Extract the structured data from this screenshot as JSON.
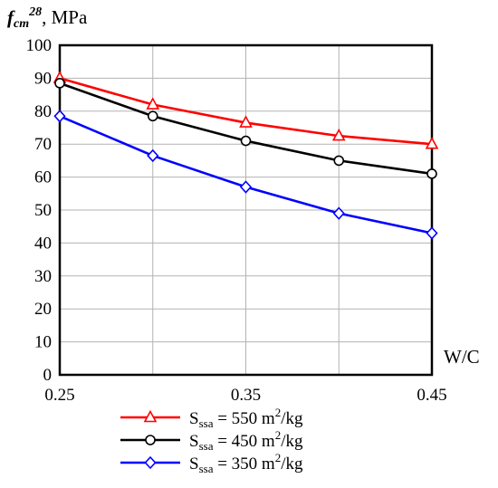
{
  "chart_data": {
    "type": "line",
    "y_title": {
      "main": "f",
      "sub": "cm",
      "sup": "28",
      "unit": ", MPa"
    },
    "x_title": "W/C",
    "x": [
      0.25,
      0.3,
      0.35,
      0.4,
      0.45
    ],
    "xlim": [
      0.25,
      0.45
    ],
    "ylim": [
      0,
      100
    ],
    "x_ticks": [
      {
        "value": 0.25,
        "label": "0.25"
      },
      {
        "value": 0.35,
        "label": "0.35"
      },
      {
        "value": 0.45,
        "label": "0.45"
      }
    ],
    "y_ticks": [
      0,
      10,
      20,
      30,
      40,
      50,
      60,
      70,
      80,
      90,
      100
    ],
    "grid": true,
    "legend_position": "bottom",
    "series": [
      {
        "name_main": "S",
        "name_sub": "ssa",
        "name_rest": " = 550 m",
        "name_sup": "2",
        "name_unit": "/kg",
        "color": "#ff0000",
        "marker": "triangle",
        "values": [
          90,
          82,
          76.5,
          72.5,
          70
        ]
      },
      {
        "name_main": "S",
        "name_sub": "ssa",
        "name_rest": " = 450 m",
        "name_sup": "2",
        "name_unit": "/kg",
        "color": "#000000",
        "marker": "circle",
        "values": [
          88.5,
          78.5,
          71,
          65,
          61
        ]
      },
      {
        "name_main": "S",
        "name_sub": "ssa",
        "name_rest": " = 350 m",
        "name_sup": "2",
        "name_unit": "/kg",
        "color": "#0000ff",
        "marker": "diamond",
        "values": [
          78.5,
          66.5,
          57,
          49,
          43
        ]
      }
    ]
  }
}
